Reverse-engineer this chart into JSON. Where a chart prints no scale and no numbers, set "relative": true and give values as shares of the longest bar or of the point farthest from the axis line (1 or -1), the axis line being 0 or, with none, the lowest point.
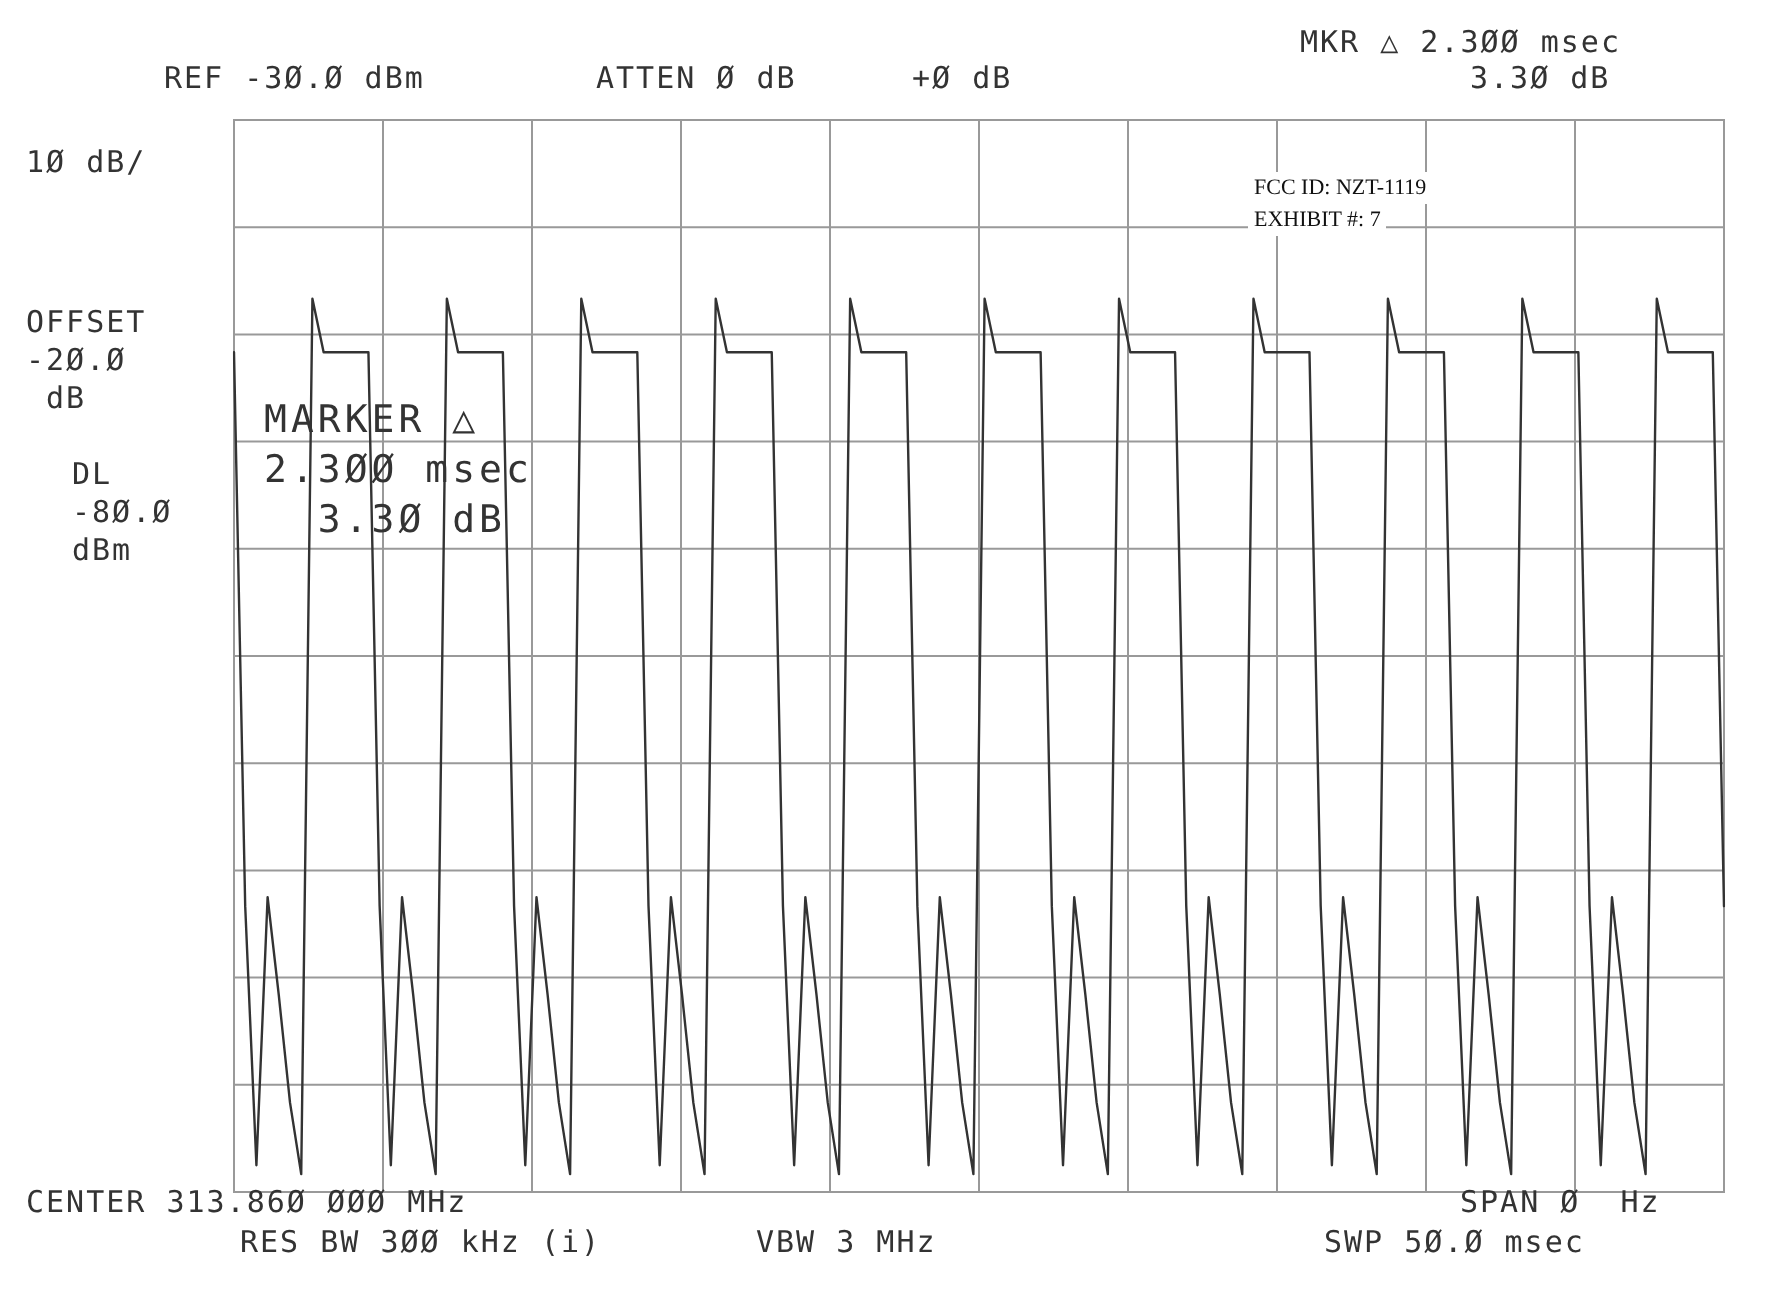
{
  "chart_data": {
    "type": "line",
    "relative": true,
    "grid": true,
    "marker": "none",
    "line_style": "solid",
    "categories": [
      null,
      null,
      null,
      null,
      null,
      null,
      null,
      null,
      null,
      null,
      null,
      null,
      null,
      null,
      null,
      null,
      null,
      null,
      null,
      null,
      null,
      null,
      null,
      null,
      null,
      null,
      null,
      null,
      null,
      null,
      null,
      null,
      null,
      null,
      null,
      null,
      null,
      null,
      null,
      null,
      null,
      null,
      null,
      null,
      null,
      null,
      null,
      null,
      null,
      null,
      null,
      null,
      null,
      null,
      null,
      null,
      null,
      null,
      null,
      null,
      null,
      null,
      null,
      null,
      null,
      null,
      null,
      null,
      null,
      null,
      null,
      null,
      null,
      null,
      null,
      null,
      null,
      null,
      null,
      null,
      null,
      null,
      null,
      null,
      null,
      null,
      null,
      null,
      null,
      null,
      null,
      null,
      null,
      null,
      null,
      null,
      null,
      null,
      null,
      null,
      null,
      null,
      null,
      null,
      null,
      null,
      null,
      null,
      null,
      null,
      null,
      null,
      null,
      null,
      null,
      null,
      null,
      null,
      null,
      null,
      null,
      null,
      null,
      null,
      null,
      null,
      null,
      null,
      null,
      null,
      null,
      null,
      null,
      null
    ],
    "series": [
      {
        "color": "#333333",
        "values": [
          0.94,
          0.32,
          0.03,
          0.33,
          0.22,
          0.1,
          0.02,
          1,
          0.94,
          0.94,
          0.94,
          0.94,
          0.94,
          0.32,
          0.03,
          0.33,
          0.22,
          0.1,
          0.02,
          1,
          0.94,
          0.94,
          0.94,
          0.94,
          0.94,
          0.32,
          0.03,
          0.33,
          0.22,
          0.1,
          0.02,
          1,
          0.94,
          0.94,
          0.94,
          0.94,
          0.94,
          0.32,
          0.03,
          0.33,
          0.22,
          0.1,
          0.02,
          1,
          0.94,
          0.94,
          0.94,
          0.94,
          0.94,
          0.32,
          0.03,
          0.33,
          0.22,
          0.1,
          0.02,
          1,
          0.94,
          0.94,
          0.94,
          0.94,
          0.94,
          0.32,
          0.03,
          0.33,
          0.22,
          0.1,
          0.02,
          1,
          0.94,
          0.94,
          0.94,
          0.94,
          0.94,
          0.32,
          0.03,
          0.33,
          0.22,
          0.1,
          0.02,
          1,
          0.94,
          0.94,
          0.94,
          0.94,
          0.94,
          0.32,
          0.03,
          0.33,
          0.22,
          0.1,
          0.02,
          1,
          0.94,
          0.94,
          0.94,
          0.94,
          0.94,
          0.32,
          0.03,
          0.33,
          0.22,
          0.1,
          0.02,
          1,
          0.94,
          0.94,
          0.94,
          0.94,
          0.94,
          0.32,
          0.03,
          0.33,
          0.22,
          0.1,
          0.02,
          1,
          0.94,
          0.94,
          0.94,
          0.94,
          0.94,
          0.32,
          0.03,
          0.33,
          0.22,
          0.1,
          0.02,
          1,
          0.94,
          0.94,
          0.94,
          0.94,
          0.94,
          0.32
        ]
      }
    ],
    "annotations": [
      "REF -3Ø.Ø dBm",
      "ATTEN Ø dB",
      "+Ø dB",
      "MKR △ 2.3ØØ msec",
      "3.3Ø dB",
      "1Ø dB/",
      "OFFSET\n-2Ø.Ø\n dB",
      "DL\n-8Ø.Ø\ndBm",
      "MARKER △\n2.3ØØ msec\n  3.3Ø dB",
      "CENTER 313.86Ø ØØØ MHz",
      "RES BW 3ØØ kHz (i)",
      "VBW 3 MHz",
      "SPAN Ø  Hz",
      "SWP 5Ø.Ø msec",
      "FCC ID: NZT-1119",
      "EXHIBIT #: 7"
    ]
  }
}
